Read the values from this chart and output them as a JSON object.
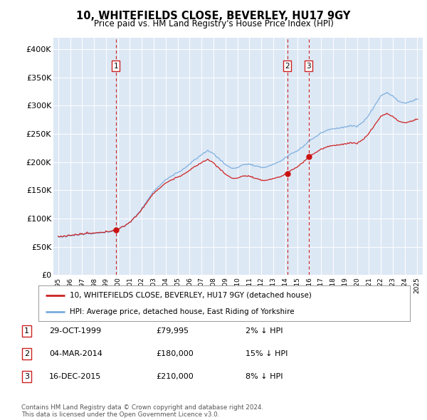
{
  "title": "10, WHITEFIELDS CLOSE, BEVERLEY, HU17 9GY",
  "subtitle": "Price paid vs. HM Land Registry's House Price Index (HPI)",
  "ylim": [
    0,
    420000
  ],
  "yticks": [
    0,
    50000,
    100000,
    150000,
    200000,
    250000,
    300000,
    350000,
    400000
  ],
  "ytick_labels": [
    "£0",
    "£50K",
    "£100K",
    "£150K",
    "£200K",
    "£250K",
    "£300K",
    "£350K",
    "£400K"
  ],
  "sales": [
    {
      "date_num": 1999.83,
      "price": 79995,
      "label": "1"
    },
    {
      "date_num": 2014.17,
      "price": 180000,
      "label": "2"
    },
    {
      "date_num": 2015.96,
      "price": 210000,
      "label": "3"
    }
  ],
  "sale_vline_color": "#cc2222",
  "sale_dot_color": "#cc1111",
  "hpi_line_color": "#7aaddd",
  "property_line_color": "#cc2222",
  "plot_bg_color": "#dde8f5",
  "background_color": "#ffffff",
  "grid_color": "#ffffff",
  "legend_property_label": "10, WHITEFIELDS CLOSE, BEVERLEY, HU17 9GY (detached house)",
  "legend_hpi_label": "HPI: Average price, detached house, East Riding of Yorkshire",
  "table_rows": [
    {
      "num": "1",
      "date": "29-OCT-1999",
      "price": "£79,995",
      "hpi": "2% ↓ HPI"
    },
    {
      "num": "2",
      "date": "04-MAR-2014",
      "price": "£180,000",
      "hpi": "15% ↓ HPI"
    },
    {
      "num": "3",
      "date": "16-DEC-2015",
      "price": "£210,000",
      "hpi": "8% ↓ HPI"
    }
  ],
  "footnote": "Contains HM Land Registry data © Crown copyright and database right 2024.\nThis data is licensed under the Open Government Licence v3.0.",
  "hpi_anchors_x": [
    1995.0,
    1995.5,
    1996.0,
    1996.5,
    1997.0,
    1997.5,
    1998.0,
    1998.5,
    1999.0,
    1999.5,
    2000.0,
    2000.5,
    2001.0,
    2001.5,
    2002.0,
    2002.5,
    2003.0,
    2003.5,
    2004.0,
    2004.5,
    2005.0,
    2005.5,
    2006.0,
    2006.5,
    2007.0,
    2007.5,
    2008.0,
    2008.5,
    2009.0,
    2009.5,
    2010.0,
    2010.5,
    2011.0,
    2011.5,
    2012.0,
    2012.5,
    2013.0,
    2013.5,
    2014.0,
    2014.5,
    2015.0,
    2015.5,
    2016.0,
    2016.5,
    2017.0,
    2017.5,
    2018.0,
    2018.5,
    2019.0,
    2019.5,
    2020.0,
    2020.5,
    2021.0,
    2021.5,
    2022.0,
    2022.5,
    2023.0,
    2023.5,
    2024.0,
    2024.5,
    2025.0
  ],
  "hpi_anchors_y": [
    67000,
    67500,
    68500,
    69500,
    70500,
    71500,
    72500,
    74000,
    75500,
    77500,
    80000,
    86000,
    94000,
    104000,
    118000,
    133000,
    148000,
    158000,
    168000,
    175000,
    181000,
    188000,
    196000,
    205000,
    213000,
    220000,
    215000,
    205000,
    195000,
    188000,
    190000,
    195000,
    196000,
    192000,
    190000,
    192000,
    196000,
    200000,
    207000,
    215000,
    220000,
    228000,
    238000,
    245000,
    252000,
    257000,
    260000,
    262000,
    264000,
    266000,
    265000,
    272000,
    285000,
    302000,
    318000,
    324000,
    318000,
    308000,
    305000,
    308000,
    312000
  ]
}
